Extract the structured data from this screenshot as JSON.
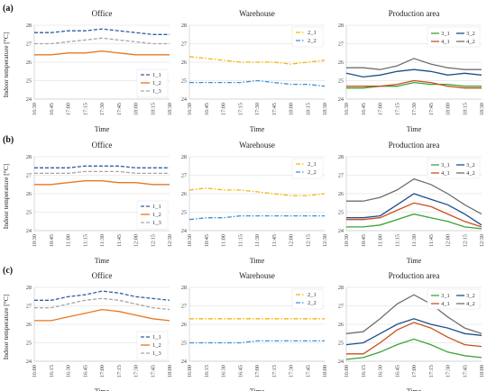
{
  "figure": {
    "y_axis_label": "Indoor temperature [°C]",
    "x_axis_label": "Time"
  },
  "colors": {
    "1_1": "#2f5f9e",
    "1_2": "#e87722",
    "1_3": "#a6a6a6",
    "2_1": "#f2b705",
    "2_2": "#3a8fd9",
    "3_1": "#3aa33a",
    "3_2": "#1f4e8c",
    "4_1": "#c8501e",
    "4_2": "#707070"
  },
  "chart_data": [
    {
      "group": "(a)",
      "title": "Office",
      "type": "line",
      "ylim": [
        24,
        28
      ],
      "yticks": [
        24,
        25,
        26,
        27,
        28
      ],
      "legend": "bottom-right",
      "x": [
        "16:30",
        "16:45",
        "17:00",
        "17:15",
        "17:30",
        "17:45",
        "18:00",
        "18:15",
        "18:30"
      ],
      "series": [
        {
          "name": "1_1",
          "style": "dashed",
          "values": [
            27.6,
            27.6,
            27.7,
            27.7,
            27.8,
            27.7,
            27.6,
            27.5,
            27.5
          ]
        },
        {
          "name": "1_2",
          "style": "solid",
          "values": [
            26.4,
            26.4,
            26.5,
            26.5,
            26.6,
            26.5,
            26.4,
            26.4,
            26.4
          ]
        },
        {
          "name": "1_3",
          "style": "dashed",
          "values": [
            27.0,
            27.0,
            27.1,
            27.2,
            27.3,
            27.2,
            27.1,
            27.0,
            27.0
          ]
        }
      ]
    },
    {
      "group": "(a)",
      "title": "Warehouse",
      "type": "line",
      "ylim": [
        24,
        28
      ],
      "yticks": [
        24,
        25,
        26,
        27,
        28
      ],
      "legend": "top-right",
      "x": [
        "16:30",
        "16:45",
        "17:00",
        "17:15",
        "17:30",
        "17:45",
        "18:00",
        "18:15",
        "18:30"
      ],
      "series": [
        {
          "name": "2_1",
          "style": "dashdot",
          "values": [
            26.3,
            26.2,
            26.1,
            26.0,
            26.0,
            26.0,
            25.9,
            26.0,
            26.1
          ]
        },
        {
          "name": "2_2",
          "style": "dashdot",
          "values": [
            24.9,
            24.9,
            24.9,
            24.9,
            25.0,
            24.9,
            24.8,
            24.8,
            24.7
          ]
        }
      ]
    },
    {
      "group": "(a)",
      "title": "Production area",
      "type": "line",
      "ylim": [
        24,
        28
      ],
      "yticks": [
        24,
        25,
        26,
        27,
        28
      ],
      "legend": "top-right",
      "x": [
        "16:30",
        "16:45",
        "17:00",
        "17:15",
        "17:30",
        "17:45",
        "18:00",
        "18:15",
        "18:30"
      ],
      "series": [
        {
          "name": "3_1",
          "style": "solid",
          "values": [
            24.6,
            24.6,
            24.7,
            24.7,
            24.9,
            24.8,
            24.8,
            24.7,
            24.7
          ]
        },
        {
          "name": "3_2",
          "style": "solid",
          "values": [
            25.4,
            25.2,
            25.3,
            25.5,
            25.6,
            25.5,
            25.3,
            25.4,
            25.3
          ]
        },
        {
          "name": "4_1",
          "style": "solid",
          "values": [
            24.7,
            24.7,
            24.7,
            24.8,
            25.0,
            24.9,
            24.7,
            24.6,
            24.6
          ]
        },
        {
          "name": "4_2",
          "style": "solid",
          "values": [
            25.7,
            25.7,
            25.6,
            25.8,
            26.2,
            25.9,
            25.7,
            25.6,
            25.6
          ]
        }
      ]
    },
    {
      "group": "(b)",
      "title": "Office",
      "type": "line",
      "ylim": [
        24,
        28
      ],
      "yticks": [
        24,
        25,
        26,
        27,
        28
      ],
      "legend": "bottom-right",
      "x": [
        "10:30",
        "10:45",
        "11:00",
        "11:15",
        "11:30",
        "11:45",
        "12:00",
        "12:15",
        "12:30"
      ],
      "series": [
        {
          "name": "1_1",
          "style": "dashed",
          "values": [
            27.4,
            27.4,
            27.4,
            27.5,
            27.5,
            27.5,
            27.4,
            27.4,
            27.4
          ]
        },
        {
          "name": "1_2",
          "style": "solid",
          "values": [
            26.5,
            26.5,
            26.6,
            26.7,
            26.7,
            26.6,
            26.6,
            26.5,
            26.5
          ]
        },
        {
          "name": "1_3",
          "style": "dashed",
          "values": [
            27.1,
            27.1,
            27.1,
            27.2,
            27.2,
            27.2,
            27.1,
            27.1,
            27.1
          ]
        }
      ]
    },
    {
      "group": "(b)",
      "title": "Warehouse",
      "type": "line",
      "ylim": [
        24,
        28
      ],
      "yticks": [
        24,
        25,
        26,
        27,
        28
      ],
      "legend": "top-right",
      "x": [
        "10:30",
        "10:45",
        "11:00",
        "11:15",
        "11:30",
        "11:45",
        "12:00",
        "12:15",
        "12:30"
      ],
      "series": [
        {
          "name": "2_1",
          "style": "dashdot",
          "values": [
            26.2,
            26.3,
            26.2,
            26.2,
            26.1,
            26.0,
            25.9,
            25.9,
            26.0
          ]
        },
        {
          "name": "2_2",
          "style": "dashdot",
          "values": [
            24.6,
            24.7,
            24.7,
            24.8,
            24.8,
            24.8,
            24.8,
            24.8,
            24.8
          ]
        }
      ]
    },
    {
      "group": "(b)",
      "title": "Production area",
      "type": "line",
      "ylim": [
        24,
        28
      ],
      "yticks": [
        24,
        25,
        26,
        27,
        28
      ],
      "legend": "top-right",
      "x": [
        "10:30",
        "10:45",
        "11:00",
        "11:15",
        "11:30",
        "11:45",
        "12:00",
        "12:15",
        "12:30"
      ],
      "series": [
        {
          "name": "3_1",
          "style": "solid",
          "values": [
            24.2,
            24.2,
            24.3,
            24.6,
            24.9,
            24.7,
            24.5,
            24.2,
            24.1
          ]
        },
        {
          "name": "3_2",
          "style": "solid",
          "values": [
            24.7,
            24.7,
            24.8,
            25.4,
            26.0,
            25.7,
            25.4,
            24.9,
            24.3
          ]
        },
        {
          "name": "4_1",
          "style": "solid",
          "values": [
            24.6,
            24.6,
            24.7,
            25.1,
            25.5,
            25.3,
            24.9,
            24.5,
            24.2
          ]
        },
        {
          "name": "4_2",
          "style": "solid",
          "values": [
            25.6,
            25.6,
            25.8,
            26.2,
            26.8,
            26.5,
            26.0,
            25.4,
            24.9
          ]
        }
      ]
    },
    {
      "group": "(c)",
      "title": "Office",
      "type": "line",
      "ylim": [
        24,
        28
      ],
      "yticks": [
        24,
        25,
        26,
        27,
        28
      ],
      "legend": "bottom-right",
      "x": [
        "16:00",
        "16:15",
        "16:30",
        "16:45",
        "17:00",
        "17:15",
        "17:30",
        "17:45",
        "18:00"
      ],
      "series": [
        {
          "name": "1_1",
          "style": "dashed",
          "values": [
            27.3,
            27.3,
            27.5,
            27.6,
            27.8,
            27.7,
            27.5,
            27.4,
            27.3
          ]
        },
        {
          "name": "1_2",
          "style": "solid",
          "values": [
            26.2,
            26.2,
            26.4,
            26.6,
            26.8,
            26.7,
            26.5,
            26.3,
            26.2
          ]
        },
        {
          "name": "1_3",
          "style": "dashed",
          "values": [
            26.9,
            26.9,
            27.1,
            27.3,
            27.4,
            27.3,
            27.1,
            26.9,
            26.8
          ]
        }
      ]
    },
    {
      "group": "(c)",
      "title": "Warehouse",
      "type": "line",
      "ylim": [
        24,
        28
      ],
      "yticks": [
        24,
        25,
        26,
        27,
        28
      ],
      "legend": "top-right",
      "x": [
        "16:00",
        "16:15",
        "16:30",
        "16:45",
        "17:00",
        "17:15",
        "17:30",
        "17:45",
        "18:00"
      ],
      "series": [
        {
          "name": "2_1",
          "style": "dashdot",
          "values": [
            26.3,
            26.3,
            26.3,
            26.3,
            26.3,
            26.3,
            26.3,
            26.3,
            26.3
          ]
        },
        {
          "name": "2_2",
          "style": "dashdot",
          "values": [
            25.0,
            25.0,
            25.0,
            25.0,
            25.1,
            25.1,
            25.1,
            25.1,
            25.1
          ]
        }
      ]
    },
    {
      "group": "(c)",
      "title": "Production area",
      "type": "line",
      "ylim": [
        24,
        28
      ],
      "yticks": [
        24,
        25,
        26,
        27,
        28
      ],
      "legend": "top-right",
      "x": [
        "16:00",
        "16:15",
        "16:30",
        "16:45",
        "17:00",
        "17:15",
        "17:30",
        "17:45",
        "18:00"
      ],
      "series": [
        {
          "name": "3_1",
          "style": "solid",
          "values": [
            24.1,
            24.2,
            24.5,
            24.9,
            25.2,
            24.9,
            24.5,
            24.3,
            24.2
          ]
        },
        {
          "name": "3_2",
          "style": "solid",
          "values": [
            24.9,
            25.0,
            25.5,
            26.0,
            26.3,
            26.0,
            25.8,
            25.5,
            25.4
          ]
        },
        {
          "name": "4_1",
          "style": "solid",
          "values": [
            24.4,
            24.4,
            25.0,
            25.7,
            26.1,
            25.8,
            25.3,
            24.9,
            24.8
          ]
        },
        {
          "name": "4_2",
          "style": "solid",
          "values": [
            25.5,
            25.6,
            26.3,
            27.1,
            27.6,
            27.1,
            26.4,
            25.8,
            25.5
          ]
        }
      ]
    }
  ]
}
